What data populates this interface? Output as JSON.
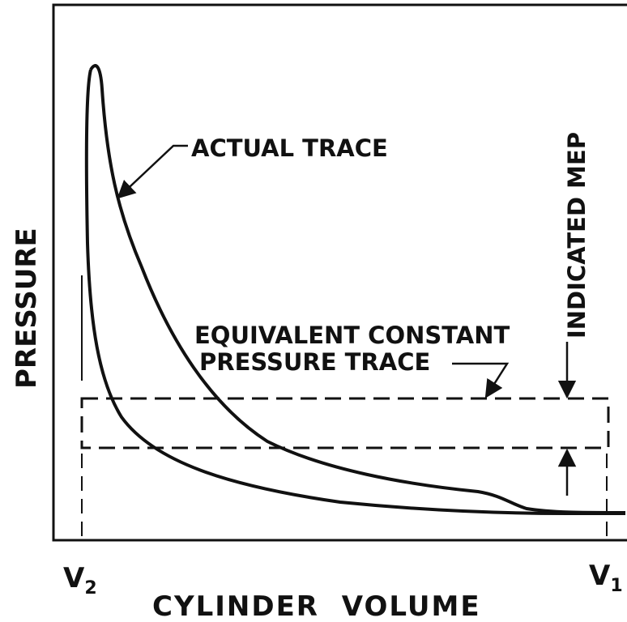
{
  "axes": {
    "y_label": "PRESSURE",
    "x_label": "CYLINDER VOLUME"
  },
  "volume_marks": [
    {
      "letter": "V",
      "subscript": "2"
    },
    {
      "letter": "V",
      "subscript": "1"
    }
  ],
  "annotations": {
    "actual_trace": "ACTUAL TRACE",
    "equivalent_trace": [
      "EQUIVALENT CONSTANT",
      "PRESSURE TRACE"
    ],
    "mep": "INDICATED MEP"
  }
}
